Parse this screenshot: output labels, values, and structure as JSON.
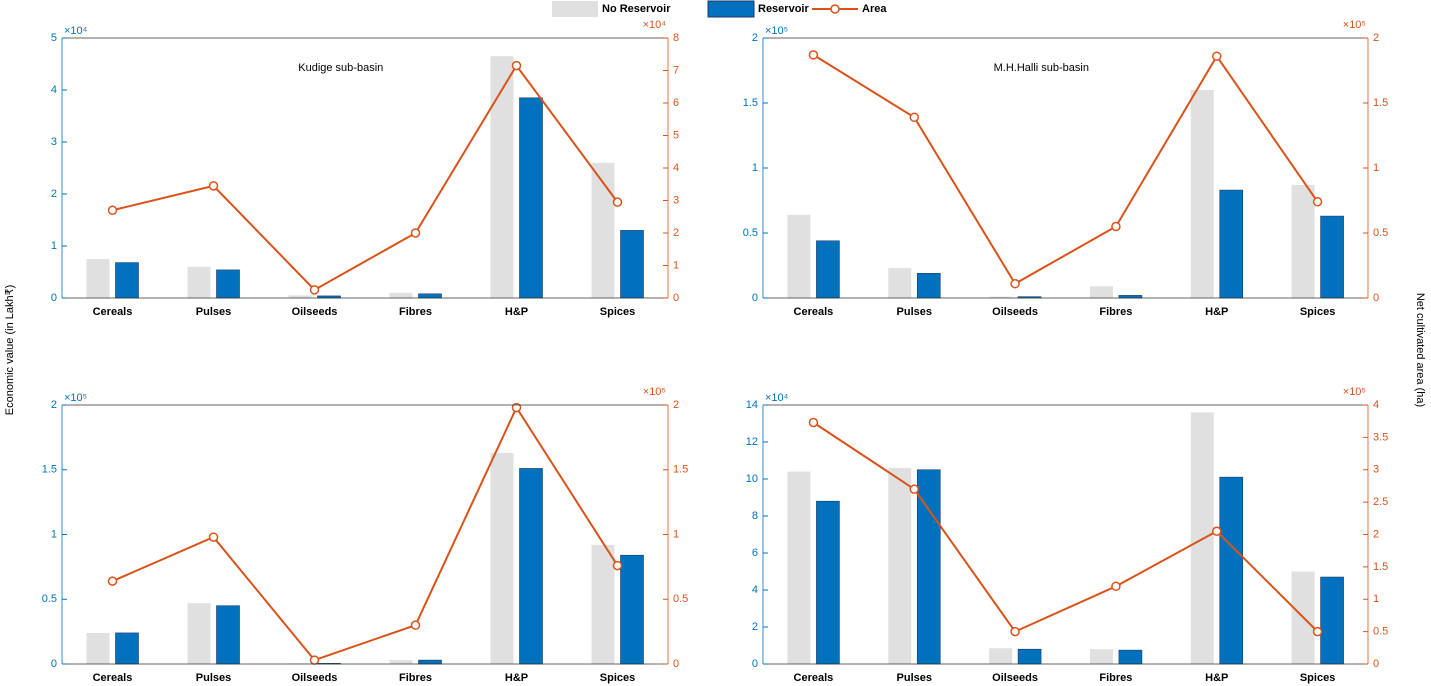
{
  "chart_data": [
    {
      "type": "combo",
      "title": "Kudige sub-basin",
      "ylabel": "Economic value (in Lakh₹)",
      "y_multiplier": "×10⁴",
      "y2_multiplier": "×10⁴",
      "categories": [
        "Cereals",
        "Pulses",
        "Oilseeds",
        "Fibres",
        "H&P",
        "Spices"
      ],
      "ylim": [
        0,
        5
      ],
      "yticks": [
        0,
        1,
        2,
        3,
        4,
        5
      ],
      "y2lim": [
        0,
        8
      ],
      "y2ticks": [
        0,
        1,
        2,
        3,
        4,
        5,
        6,
        7,
        8
      ],
      "series": [
        {
          "name": "No Reservoir",
          "color": "#e0e0e0",
          "values": [
            0.75,
            0.6,
            0.05,
            0.1,
            4.65,
            2.6
          ]
        },
        {
          "name": "Reservoir",
          "color": "#0072bd",
          "values": [
            0.68,
            0.54,
            0.04,
            0.08,
            3.85,
            1.3
          ]
        },
        {
          "name": "Area",
          "color": "#d95319",
          "axis": "y2",
          "values": [
            2.7,
            3.45,
            0.25,
            2.0,
            7.15,
            2.95
          ]
        }
      ]
    },
    {
      "type": "combo",
      "title": "M.H.Halli sub-basin",
      "y2label": "Net cultivated area (ha)",
      "y_multiplier": "×10⁵",
      "y2_multiplier": "×10⁵",
      "categories": [
        "Cereals",
        "Pulses",
        "Oilseeds",
        "Fibres",
        "H&P",
        "Spices"
      ],
      "ylim": [
        0,
        2
      ],
      "yticks": [
        0,
        0.5,
        1,
        1.5,
        2
      ],
      "y2lim": [
        0,
        2
      ],
      "y2ticks": [
        0,
        0.5,
        1,
        1.5,
        2
      ],
      "series": [
        {
          "color": "#e0e0e0",
          "values": [
            0.64,
            0.23,
            0.01,
            0.09,
            1.6,
            0.87
          ]
        },
        {
          "color": "#0072bd",
          "values": [
            0.44,
            0.19,
            0.01,
            0.02,
            0.83,
            0.63
          ]
        },
        {
          "color": "#d95319",
          "axis": "y2",
          "values": [
            1.87,
            1.39,
            0.11,
            0.55,
            1.86,
            0.74
          ]
        }
      ]
    },
    {
      "type": "combo",
      "y_multiplier": "×10⁵",
      "y2_multiplier": "×10⁵",
      "categories": [
        "Cereals",
        "Pulses",
        "Oilseeds",
        "Fibres",
        "H&P",
        "Spices"
      ],
      "ylim": [
        0,
        2
      ],
      "yticks": [
        0,
        0.5,
        1,
        1.5,
        2
      ],
      "y2lim": [
        0,
        2
      ],
      "y2ticks": [
        0,
        0.5,
        1,
        1.5,
        2
      ],
      "series": [
        {
          "color": "#e0e0e0",
          "values": [
            0.24,
            0.47,
            0.005,
            0.03,
            1.63,
            0.92
          ]
        },
        {
          "color": "#0072bd",
          "values": [
            0.24,
            0.45,
            0.005,
            0.03,
            1.51,
            0.84
          ]
        },
        {
          "color": "#d95319",
          "axis": "y2",
          "values": [
            0.64,
            0.98,
            0.03,
            0.3,
            1.98,
            0.76
          ]
        }
      ]
    },
    {
      "type": "combo",
      "y_multiplier": "×10⁴",
      "y2_multiplier": "×10⁵",
      "categories": [
        "Cereals",
        "Pulses",
        "Oilseeds",
        "Fibres",
        "H&P",
        "Spices"
      ],
      "ylim": [
        0,
        14
      ],
      "yticks": [
        0,
        2,
        4,
        6,
        8,
        10,
        12,
        14
      ],
      "y2lim": [
        0,
        4
      ],
      "y2ticks": [
        0,
        0.5,
        1,
        1.5,
        2,
        2.5,
        3,
        3.5,
        4
      ],
      "series": [
        {
          "color": "#e0e0e0",
          "values": [
            10.4,
            10.6,
            0.85,
            0.8,
            13.6,
            5.0
          ]
        },
        {
          "color": "#0072bd",
          "values": [
            8.8,
            10.5,
            0.8,
            0.75,
            10.1,
            4.7
          ]
        },
        {
          "color": "#d95319",
          "axis": "y2",
          "values": [
            3.73,
            2.7,
            0.5,
            1.2,
            2.05,
            0.5
          ]
        }
      ]
    }
  ]
}
